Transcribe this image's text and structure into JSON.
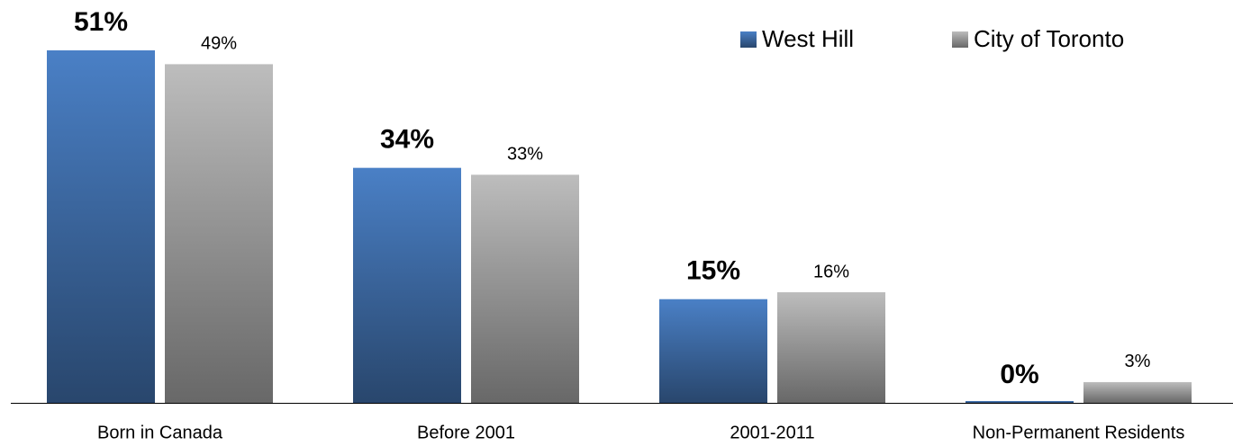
{
  "chart_data": {
    "type": "bar",
    "categories": [
      "Born in Canada",
      "Before 2001",
      "2001-2011",
      "Non-Permanent Residents"
    ],
    "series": [
      {
        "name": "West Hill",
        "color": "#4a80c6",
        "values": [
          51,
          34,
          15,
          0
        ],
        "value_labels": [
          "51%",
          "34%",
          "15%",
          "0%"
        ]
      },
      {
        "name": "City of Toronto",
        "color": "#bdbdbd",
        "values": [
          49,
          33,
          16,
          3
        ],
        "value_labels": [
          "49%",
          "33%",
          "16%",
          "3%"
        ]
      }
    ],
    "legend": "top-right"
  }
}
